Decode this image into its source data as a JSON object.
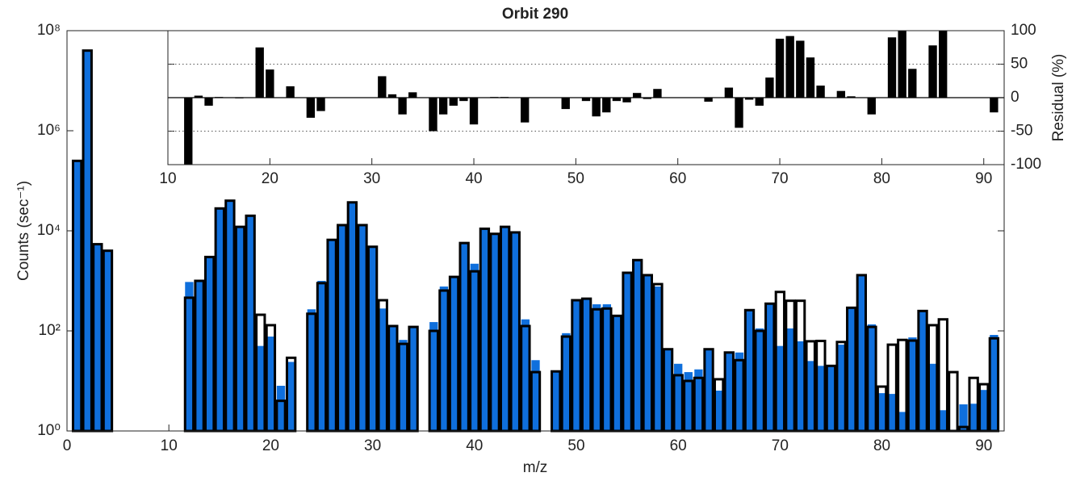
{
  "chart_data": [
    {
      "type": "bar",
      "title": "Orbit 290",
      "xlabel": "m/z",
      "ylabel": "Counts (sec⁻¹)",
      "log_y": true,
      "x": [
        1,
        2,
        3,
        4,
        5,
        6,
        7,
        8,
        9,
        10,
        11,
        12,
        13,
        14,
        15,
        16,
        17,
        18,
        19,
        20,
        21,
        22,
        23,
        24,
        25,
        26,
        27,
        28,
        29,
        30,
        31,
        32,
        33,
        34,
        35,
        36,
        37,
        38,
        39,
        40,
        41,
        42,
        43,
        44,
        45,
        46,
        47,
        48,
        49,
        50,
        51,
        52,
        53,
        54,
        55,
        56,
        57,
        58,
        59,
        60,
        61,
        62,
        63,
        64,
        65,
        66,
        67,
        68,
        69,
        70,
        71,
        72,
        73,
        74,
        75,
        76,
        77,
        78,
        79,
        80,
        81,
        82,
        83,
        84,
        85,
        86,
        87,
        88,
        89,
        90,
        91
      ],
      "series": [
        {
          "color": "#0f6fdc",
          "style": "filled",
          "values": [
            250000,
            40000000,
            5400,
            4000,
            null,
            null,
            null,
            null,
            null,
            null,
            null,
            950,
            1000,
            3000,
            28000,
            40000,
            12000,
            20000,
            50,
            77,
            8,
            24,
            null,
            270,
            1000,
            6600,
            13000,
            37000,
            13000,
            4800,
            280,
            125,
            66,
            120,
            null,
            150,
            770,
            1200,
            5700,
            2200,
            11000,
            8700,
            12000,
            9300,
            170,
            26,
            null,
            15.5,
            90,
            410,
            440,
            340,
            340,
            200,
            1450,
            2600,
            1300,
            770,
            43,
            22,
            15,
            17,
            43,
            6.4,
            38,
            37,
            260,
            112,
            340,
            50,
            112,
            62,
            25,
            20,
            21,
            53,
            290,
            1300,
            135,
            5.7,
            5.5,
            2.4,
            74,
            260,
            22,
            2.6,
            null,
            3.4,
            3.5,
            6.6,
            83
          ]
        },
        {
          "color": "#000000",
          "style": "outline",
          "values": [
            250000,
            40000000,
            5400,
            4000,
            null,
            null,
            null,
            null,
            null,
            null,
            null,
            460,
            1000,
            3000,
            28000,
            40000,
            12000,
            20000,
            210,
            130,
            4,
            29,
            null,
            220,
            900,
            6600,
            13000,
            37000,
            13000,
            4800,
            410,
            125,
            55,
            120,
            null,
            100,
            640,
            1200,
            5700,
            1550,
            11000,
            8700,
            12000,
            9300,
            125,
            15,
            null,
            15.5,
            77,
            410,
            440,
            270,
            280,
            200,
            1450,
            2600,
            1300,
            860,
            43,
            13,
            10,
            11.5,
            43,
            10.8,
            37,
            26,
            260,
            100,
            350,
            600,
            400,
            400,
            62,
            63,
            20,
            60,
            290,
            1300,
            120,
            7.7,
            53,
            66,
            64,
            250,
            130,
            170,
            15,
            1.2,
            11.5,
            8.6,
            71
          ]
        }
      ],
      "xlim": [
        0,
        92
      ],
      "xticks": [
        0,
        10,
        20,
        30,
        40,
        50,
        60,
        70,
        80,
        90
      ],
      "ylim": [
        1,
        100000000
      ],
      "yticks": [
        {
          "value": 1,
          "label": "10⁰"
        },
        {
          "value": 100,
          "label": "10²"
        },
        {
          "value": 10000,
          "label": "10⁴"
        },
        {
          "value": 1000000,
          "label": "10⁶"
        },
        {
          "value": 100000000,
          "label": "10⁸"
        }
      ],
      "grid": false
    },
    {
      "type": "bar",
      "ylabel": "Residual (%)",
      "x": [
        12,
        13,
        14,
        15,
        16,
        17,
        18,
        19,
        20,
        21,
        22,
        23,
        24,
        25,
        26,
        27,
        28,
        29,
        30,
        31,
        32,
        33,
        34,
        35,
        36,
        37,
        38,
        39,
        40,
        41,
        42,
        43,
        44,
        45,
        46,
        47,
        48,
        49,
        50,
        51,
        52,
        53,
        54,
        55,
        56,
        57,
        58,
        59,
        60,
        61,
        62,
        63,
        64,
        65,
        66,
        67,
        68,
        69,
        70,
        71,
        72,
        73,
        74,
        75,
        76,
        77,
        78,
        79,
        80,
        81,
        82,
        83,
        84,
        85,
        86,
        87,
        88,
        89,
        90,
        91
      ],
      "series": [
        {
          "color": "#000000",
          "style": "filled",
          "values": [
            -100,
            3,
            -12,
            1,
            0,
            -1,
            0,
            75,
            42,
            0,
            17,
            null,
            -30,
            -20,
            0,
            0,
            0,
            0,
            0,
            32,
            5,
            -25,
            8,
            null,
            -50,
            -25,
            -12,
            -5,
            -40,
            0,
            1,
            1,
            0,
            -37,
            0,
            null,
            0,
            -17,
            0,
            -5,
            -28,
            -22,
            -5,
            -7,
            7,
            -2,
            13,
            0,
            0,
            0,
            0,
            -6,
            0,
            15,
            -45,
            -3,
            -12,
            30,
            88,
            92,
            85,
            60,
            18,
            0,
            10,
            2,
            0,
            -25,
            0,
            90,
            100,
            43,
            0,
            78,
            100,
            0,
            0,
            0,
            0,
            -22
          ]
        }
      ],
      "xlim": [
        10,
        92
      ],
      "xticks": [
        10,
        20,
        30,
        40,
        50,
        60,
        70,
        80,
        90
      ],
      "ylim": [
        -100,
        100
      ],
      "yticks": [
        -100,
        -50,
        0,
        50,
        100
      ],
      "grid": true
    }
  ]
}
